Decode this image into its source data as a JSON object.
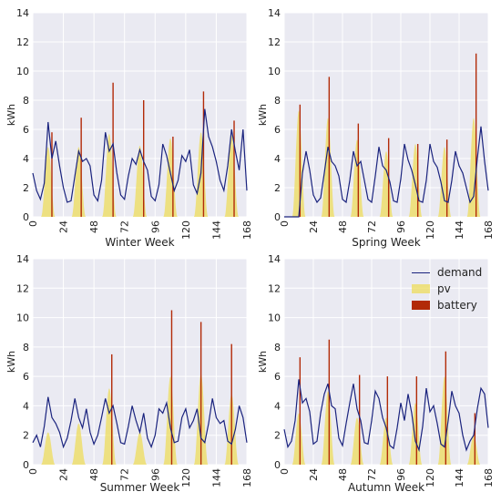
{
  "legend": {
    "demand": "demand",
    "pv": "pv",
    "battery": "battery"
  },
  "colors": {
    "plot_background": "#eaeaf2",
    "grid": "#ffffff",
    "demand": "#1a237e",
    "pv": "#eedc5b",
    "battery": "#b22a08"
  },
  "chart_data": [
    {
      "type": "line",
      "title": "Winter Week",
      "xlabel": "",
      "ylabel": "kWh",
      "xlim": [
        0,
        168
      ],
      "ylim": [
        0,
        14
      ],
      "xticks": [
        0,
        24,
        48,
        72,
        96,
        120,
        144,
        168
      ],
      "yticks": [
        0,
        2,
        4,
        6,
        8,
        10,
        12,
        14
      ],
      "grid": true,
      "series": [
        {
          "name": "demand",
          "x": [
            0,
            3,
            6,
            9,
            12,
            15,
            18,
            21,
            24,
            27,
            30,
            33,
            36,
            39,
            42,
            45,
            48,
            51,
            54,
            57,
            60,
            63,
            66,
            69,
            72,
            75,
            78,
            81,
            84,
            87,
            90,
            93,
            96,
            99,
            102,
            105,
            108,
            111,
            114,
            117,
            120,
            123,
            126,
            129,
            132,
            135,
            138,
            141,
            144,
            147,
            150,
            153,
            156,
            159,
            162,
            165,
            168
          ],
          "y": [
            3.0,
            1.8,
            1.2,
            2.3,
            6.5,
            4.0,
            5.2,
            3.5,
            2.0,
            1.0,
            1.1,
            2.8,
            4.5,
            3.8,
            4.0,
            3.5,
            1.5,
            1.1,
            2.5,
            5.8,
            4.5,
            5.0,
            3.0,
            1.5,
            1.2,
            2.8,
            4.0,
            3.6,
            4.6,
            3.8,
            3.2,
            1.4,
            1.1,
            2.2,
            5.0,
            4.2,
            3.0,
            1.8,
            2.5,
            4.2,
            3.8,
            4.6,
            2.2,
            1.6,
            3.0,
            7.4,
            5.5,
            4.8,
            3.8,
            2.5,
            1.8,
            3.5,
            6.0,
            4.5,
            3.2,
            6.0,
            1.8
          ]
        },
        {
          "name": "pv",
          "peaks": [
            {
              "center": 12,
              "value": 4.8
            },
            {
              "center": 36,
              "value": 4.8
            },
            {
              "center": 60,
              "value": 5.7
            },
            {
              "center": 84,
              "value": 4.9
            },
            {
              "center": 108,
              "value": 5.4
            },
            {
              "center": 132,
              "value": 5.8
            },
            {
              "center": 156,
              "value": 5.6
            }
          ]
        },
        {
          "name": "battery",
          "x": [
            15,
            38,
            63,
            87,
            110,
            134,
            158
          ],
          "y": [
            5.8,
            6.8,
            9.2,
            8.0,
            5.5,
            8.6,
            6.6
          ]
        }
      ]
    },
    {
      "type": "line",
      "title": "Spring Week",
      "xlabel": "",
      "ylabel": "kWh",
      "xlim": [
        0,
        168
      ],
      "ylim": [
        0,
        14
      ],
      "xticks": [
        0,
        24,
        48,
        72,
        96,
        120,
        144,
        168
      ],
      "yticks": [
        0,
        2,
        4,
        6,
        8,
        10,
        12,
        14
      ],
      "grid": true,
      "series": [
        {
          "name": "demand",
          "x": [
            0,
            3,
            6,
            9,
            12,
            15,
            18,
            21,
            24,
            27,
            30,
            33,
            36,
            39,
            42,
            45,
            48,
            51,
            54,
            57,
            60,
            63,
            66,
            69,
            72,
            75,
            78,
            81,
            84,
            87,
            90,
            93,
            96,
            99,
            102,
            105,
            108,
            111,
            114,
            117,
            120,
            123,
            126,
            129,
            132,
            135,
            138,
            141,
            144,
            147,
            150,
            153,
            156,
            159,
            162,
            165,
            168
          ],
          "y": [
            0.0,
            0.0,
            0.0,
            0.0,
            0.0,
            3.0,
            4.5,
            3.2,
            1.5,
            1.0,
            1.3,
            3.0,
            4.8,
            3.8,
            3.5,
            2.8,
            1.2,
            1.0,
            2.5,
            4.5,
            3.5,
            3.8,
            2.5,
            1.2,
            1.0,
            2.8,
            4.8,
            3.5,
            3.2,
            2.4,
            1.1,
            1.0,
            2.6,
            5.0,
            3.9,
            3.2,
            2.2,
            1.1,
            1.0,
            2.5,
            5.0,
            3.8,
            3.4,
            2.4,
            1.1,
            1.0,
            2.5,
            4.5,
            3.5,
            3.0,
            2.0,
            1.0,
            1.4,
            4.0,
            6.2,
            3.8,
            1.8
          ]
        },
        {
          "name": "pv",
          "peaks": [
            {
              "center": 12,
              "value": 7.3
            },
            {
              "center": 36,
              "value": 6.8
            },
            {
              "center": 60,
              "value": 5.3
            },
            {
              "center": 84,
              "value": 4.5
            },
            {
              "center": 108,
              "value": 5.0
            },
            {
              "center": 132,
              "value": 4.8
            },
            {
              "center": 156,
              "value": 6.8
            }
          ]
        },
        {
          "name": "battery",
          "x": [
            13,
            37,
            61,
            86,
            110,
            134,
            158
          ],
          "y": [
            7.7,
            9.6,
            6.4,
            5.4,
            5.0,
            5.3,
            11.2
          ]
        }
      ]
    },
    {
      "type": "line",
      "title": "Summer Week",
      "xlabel": "",
      "ylabel": "kWh",
      "xlim": [
        0,
        168
      ],
      "ylim": [
        0,
        14
      ],
      "xticks": [
        0,
        24,
        48,
        72,
        96,
        120,
        144,
        168
      ],
      "yticks": [
        0,
        2,
        4,
        6,
        8,
        10,
        12,
        14
      ],
      "grid": true,
      "series": [
        {
          "name": "demand",
          "x": [
            0,
            3,
            6,
            9,
            12,
            15,
            18,
            21,
            24,
            27,
            30,
            33,
            36,
            39,
            42,
            45,
            48,
            51,
            54,
            57,
            60,
            63,
            66,
            69,
            72,
            75,
            78,
            81,
            84,
            87,
            90,
            93,
            96,
            99,
            102,
            105,
            108,
            111,
            114,
            117,
            120,
            123,
            126,
            129,
            132,
            135,
            138,
            141,
            144,
            147,
            150,
            153,
            156,
            159,
            162,
            165,
            168
          ],
          "y": [
            1.5,
            2.0,
            1.2,
            2.6,
            4.6,
            3.2,
            2.8,
            2.2,
            1.2,
            1.8,
            3.0,
            4.5,
            3.2,
            2.5,
            3.8,
            2.2,
            1.4,
            2.0,
            3.2,
            4.5,
            3.5,
            4.0,
            2.8,
            1.5,
            1.4,
            2.6,
            4.0,
            3.0,
            2.2,
            3.5,
            1.8,
            1.2,
            2.0,
            3.8,
            3.5,
            4.2,
            2.5,
            1.5,
            1.6,
            3.2,
            3.8,
            2.5,
            3.0,
            3.8,
            1.8,
            1.5,
            2.8,
            4.5,
            3.2,
            2.8,
            3.0,
            1.6,
            1.4,
            2.4,
            4.0,
            3.2,
            1.5
          ]
        },
        {
          "name": "pv",
          "peaks": [
            {
              "center": 12,
              "value": 2.2
            },
            {
              "center": 36,
              "value": 2.8
            },
            {
              "center": 60,
              "value": 5.2
            },
            {
              "center": 84,
              "value": 2.2
            },
            {
              "center": 108,
              "value": 6.0
            },
            {
              "center": 132,
              "value": 6.2
            },
            {
              "center": 156,
              "value": 4.8
            }
          ]
        },
        {
          "name": "battery",
          "x": [
            62,
            109,
            132,
            156
          ],
          "y": [
            7.5,
            10.5,
            9.7,
            8.2
          ]
        }
      ]
    },
    {
      "type": "line",
      "title": "Autumn Week",
      "xlabel": "",
      "ylabel": "kWh",
      "xlim": [
        0,
        168
      ],
      "ylim": [
        0,
        14
      ],
      "xticks": [
        0,
        24,
        48,
        72,
        96,
        120,
        144,
        168
      ],
      "yticks": [
        0,
        2,
        4,
        6,
        8,
        10,
        12,
        14
      ],
      "grid": true,
      "series": [
        {
          "name": "demand",
          "x": [
            0,
            3,
            6,
            9,
            12,
            15,
            18,
            21,
            24,
            27,
            30,
            33,
            36,
            39,
            42,
            45,
            48,
            51,
            54,
            57,
            60,
            63,
            66,
            69,
            72,
            75,
            78,
            81,
            84,
            87,
            90,
            93,
            96,
            99,
            102,
            105,
            108,
            111,
            114,
            117,
            120,
            123,
            126,
            129,
            132,
            135,
            138,
            141,
            144,
            147,
            150,
            153,
            156,
            159,
            162,
            165,
            168
          ],
          "y": [
            2.4,
            1.2,
            1.6,
            3.0,
            5.8,
            4.2,
            4.5,
            3.6,
            1.4,
            1.6,
            3.5,
            4.8,
            5.5,
            4.0,
            3.8,
            1.8,
            1.3,
            2.8,
            4.2,
            5.5,
            3.8,
            3.0,
            1.5,
            1.4,
            3.0,
            5.0,
            4.5,
            3.2,
            2.5,
            1.3,
            1.1,
            2.5,
            4.2,
            3.0,
            4.8,
            3.5,
            1.6,
            1.0,
            2.6,
            5.2,
            3.6,
            4.0,
            2.8,
            1.4,
            1.2,
            3.0,
            5.0,
            4.0,
            3.5,
            2.0,
            1.0,
            1.6,
            2.0,
            3.8,
            5.2,
            4.8,
            2.5
          ]
        },
        {
          "name": "pv",
          "peaks": [
            {
              "center": 12,
              "value": 3.5
            },
            {
              "center": 36,
              "value": 5.0
            },
            {
              "center": 60,
              "value": 3.2
            },
            {
              "center": 84,
              "value": 3.2
            },
            {
              "center": 108,
              "value": 4.2
            },
            {
              "center": 132,
              "value": 6.0
            },
            {
              "center": 156,
              "value": 2.0
            }
          ]
        },
        {
          "name": "battery",
          "x": [
            13,
            37,
            62,
            85,
            109,
            133,
            157
          ],
          "y": [
            7.3,
            8.5,
            6.1,
            6.0,
            6.0,
            7.7,
            3.5
          ]
        }
      ]
    }
  ]
}
